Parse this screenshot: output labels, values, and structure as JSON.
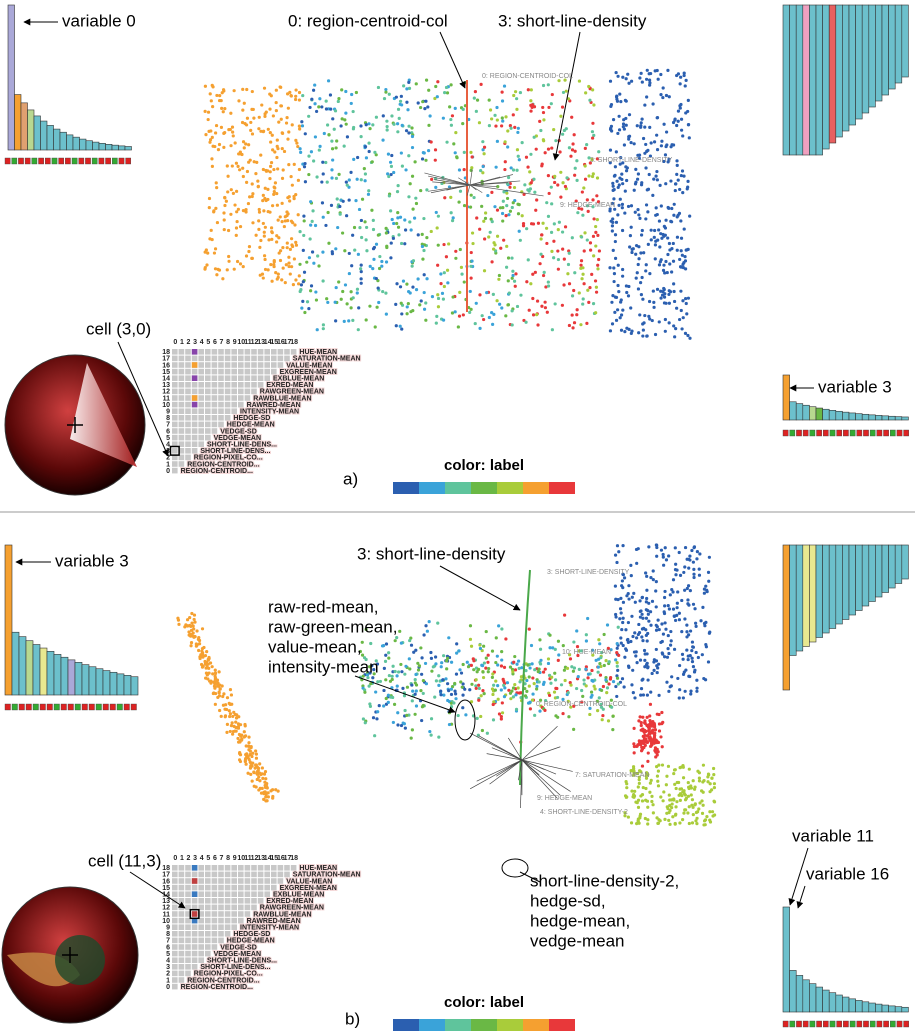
{
  "panel_a": {
    "label": "a)",
    "variable_top": "variable 0",
    "variable_bottom": "variable 3",
    "cell": "cell (3,0)",
    "color_legend": "color: label",
    "annotations": [
      "0: region-centroid-col",
      "3: short-line-density"
    ],
    "plot_labels": [
      "0: REGION-CENTROID-COL",
      "3: SHORT-LINE-DENSITY",
      "9: HEDGE-MEAN"
    ]
  },
  "panel_b": {
    "label": "b)",
    "variable_top": "variable 3",
    "variable_bottom_1": "variable 11",
    "variable_bottom_2": "variable 16",
    "cell": "cell (11,3)",
    "color_legend": "color: label",
    "annotation_top": "3: short-line-density",
    "annotation_left": [
      "raw-red-mean,",
      "raw-green-mean,",
      "value-mean,",
      "intensity-mean"
    ],
    "annotation_bottom": [
      "short-line-density-2,",
      "hedge-sd,",
      "hedge-mean,",
      "vedge-mean"
    ],
    "plot_labels": [
      "3: SHORT-LINE-DENSITY",
      "10: HUE-MEAN",
      "0: REGION-CENTROID-COL",
      "7: SATURATION-MEAN",
      "9: HEDGE-MEAN",
      "4: SHORT-LINE-DENSITY-2"
    ]
  },
  "matrix": {
    "columns": [
      "0",
      "1",
      "2",
      "3",
      "4",
      "5",
      "6",
      "7",
      "8",
      "9",
      "10",
      "11",
      "12",
      "13",
      "14",
      "15",
      "16",
      "17",
      "18"
    ],
    "rows": [
      "18",
      "17",
      "16",
      "15",
      "14",
      "13",
      "12",
      "11",
      "10",
      "9",
      "8",
      "7",
      "6",
      "5",
      "4",
      "3",
      "2",
      "1",
      "0"
    ],
    "names": [
      "HUE-MEAN",
      "SATURATION-MEAN",
      "VALUE-MEAN",
      "EXGREEN-MEAN",
      "EXBLUE-MEAN",
      "EXRED-MEAN",
      "RAWGREEN-MEAN",
      "RAWBLUE-MEAN",
      "RAWRED-MEAN",
      "INTENSITY-MEAN",
      "HEDGE-SD",
      "HEDGE-MEAN",
      "VEDGE-SD",
      "VEDGE-MEAN",
      "SHORT-LINE-DENS...",
      "SHORT-LINE-DENS...",
      "REGION-PIXEL-CO...",
      "REGION-CENTROID...",
      "REGION-CENTROID..."
    ]
  }
}
